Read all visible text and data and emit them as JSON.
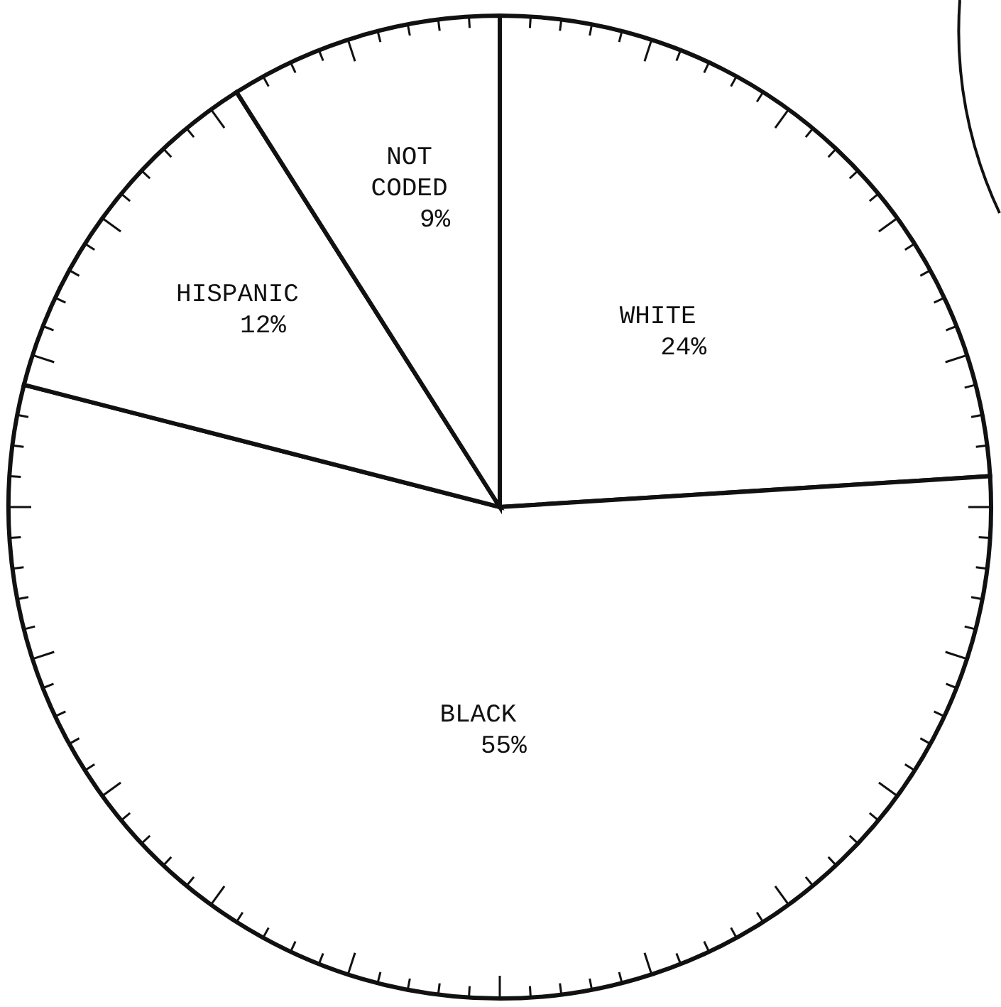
{
  "chart_data": {
    "type": "pie",
    "categories": [
      "WHITE",
      "BLACK",
      "HISPANIC",
      "NOT CODED"
    ],
    "values": [
      24,
      55,
      12,
      9
    ],
    "value_labels": [
      "24%",
      "55%",
      "12%",
      "9%"
    ],
    "colors": [
      "#ffffff",
      "#ffffff",
      "#ffffff",
      "#ffffff"
    ],
    "legend": false
  }
}
